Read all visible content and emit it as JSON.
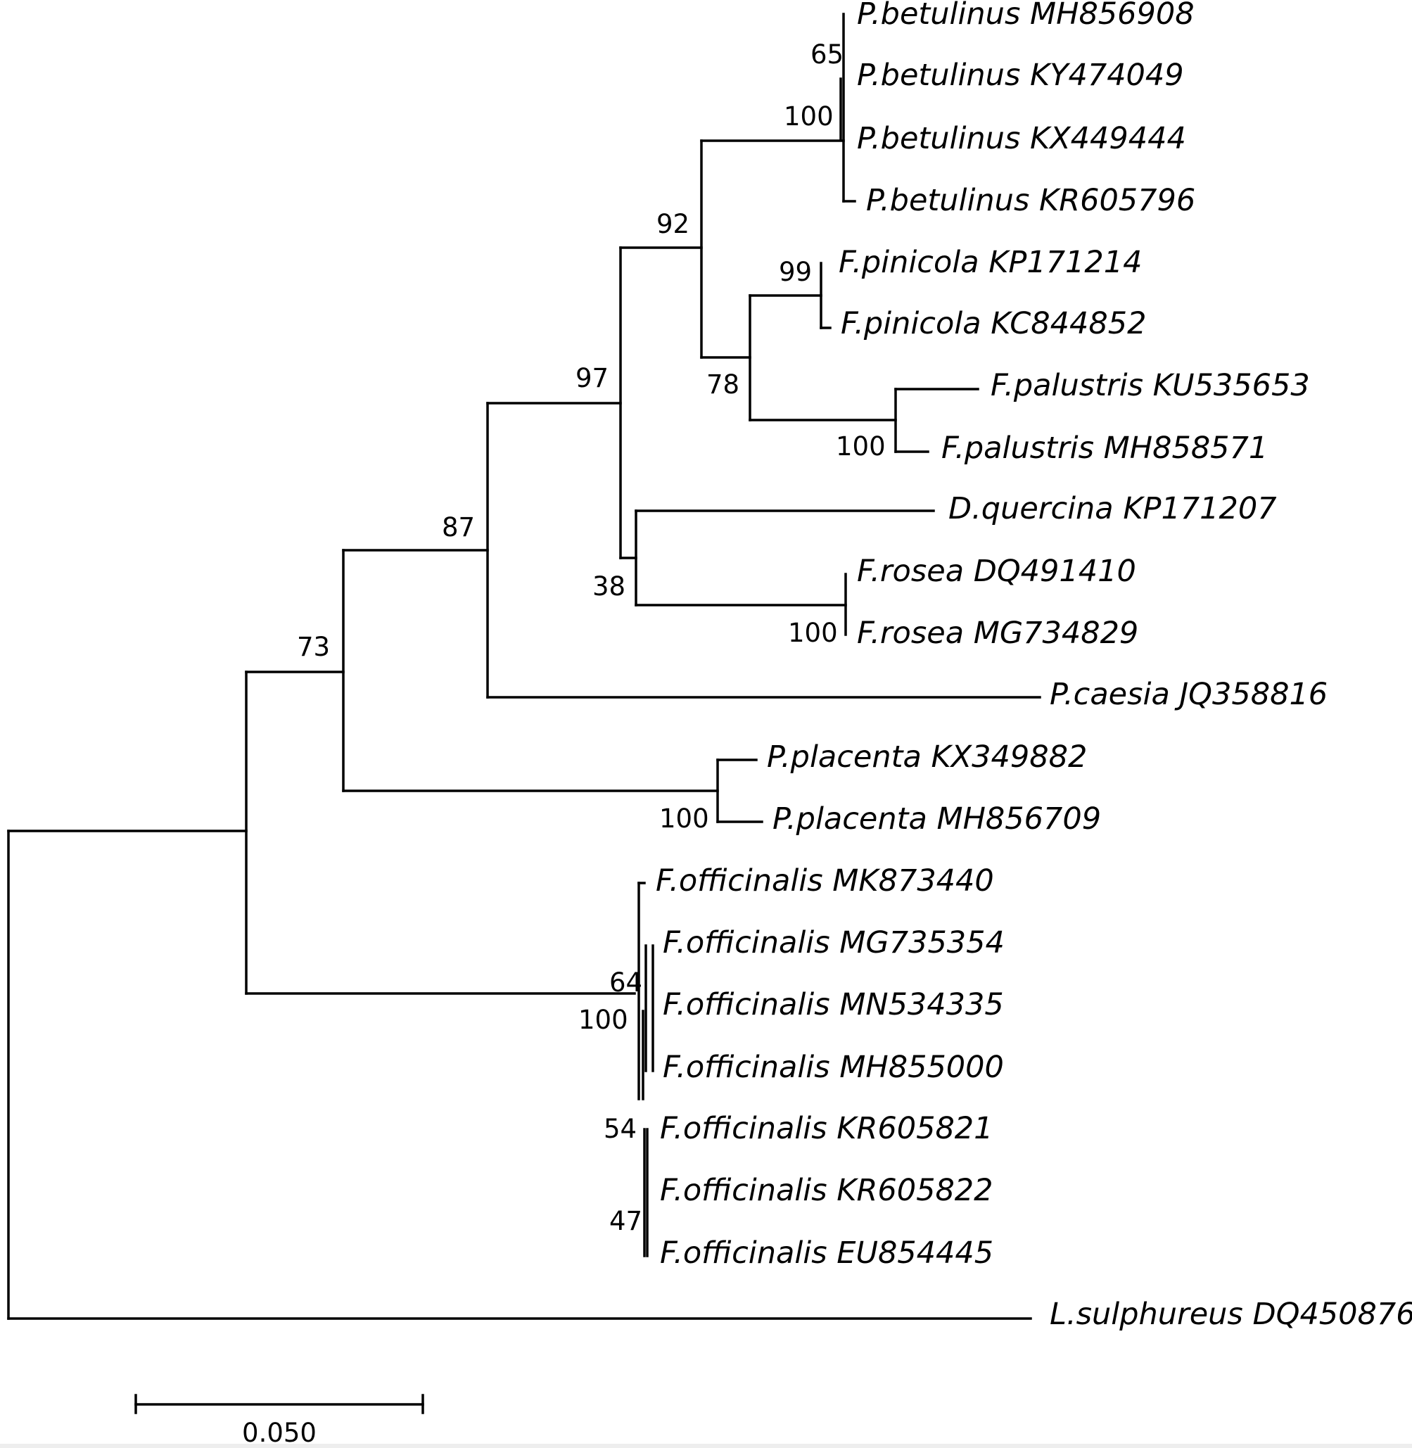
{
  "tree": {
    "taxa": [
      "P.betulinus MH856908",
      "P.betulinus KY474049",
      "P.betulinus KX449444",
      "P.betulinus KR605796",
      "F.pinicola KP171214",
      "F.pinicola KC844852",
      "F.palustris KU535653",
      "F.palustris MH858571",
      "D.quercina KP171207",
      "F.rosea DQ491410",
      "F.rosea MG734829",
      "P.caesia JQ358816",
      "P.placenta KX349882",
      "P.placenta MH856709",
      "F.officinalis MK873440",
      "F.officinalis MG735354",
      "F.officinalis MN534335",
      "F.officinalis MH855000",
      "F.officinalis KR605821",
      "F.officinalis KR605822",
      "F.officinalis EU854445",
      "L.sulphureus DQ450876"
    ],
    "support_values": [
      "65",
      "100",
      "92",
      "99",
      "78",
      "100",
      "97",
      "38",
      "100",
      "87",
      "73",
      "100",
      "64",
      "100",
      "54",
      "47"
    ],
    "scale_bar_label": "0.050",
    "line_color": "#000000"
  }
}
